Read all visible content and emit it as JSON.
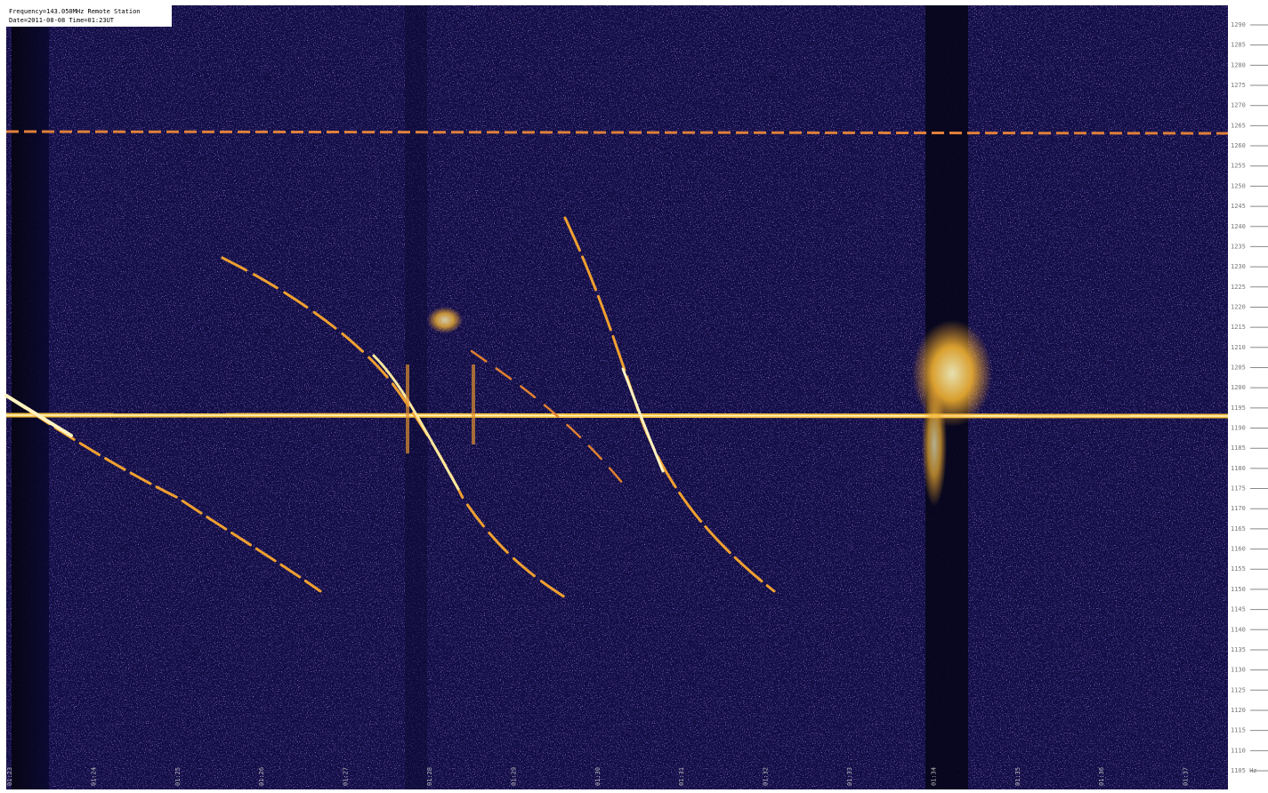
{
  "header": {
    "lines": [
      "Frequency=143.050MHz Remote Station",
      "Date=2011-08-08 Time=01:23UT"
    ]
  },
  "y_axis": {
    "labels": [
      "1290",
      "1285",
      "1280",
      "1275",
      "1270",
      "1265",
      "1260",
      "1255",
      "1250",
      "1245",
      "1240",
      "1235",
      "1230",
      "1225",
      "1220",
      "1215",
      "1210",
      "1205",
      "1200",
      "1195",
      "1190",
      "1185",
      "1180",
      "1175",
      "1170",
      "1165",
      "1160",
      "1155",
      "1150",
      "1145",
      "1140",
      "1135",
      "1130",
      "1125",
      "1120",
      "1115",
      "1110",
      "1105 Hz"
    ]
  },
  "x_axis": {
    "labels": [
      "01:23",
      "01:24",
      "01:25",
      "01:26",
      "01:27",
      "01:28",
      "01:29",
      "01:30",
      "01:31",
      "01:32",
      "01:33",
      "01:34",
      "01:35",
      "01:36",
      "01:37"
    ]
  }
}
